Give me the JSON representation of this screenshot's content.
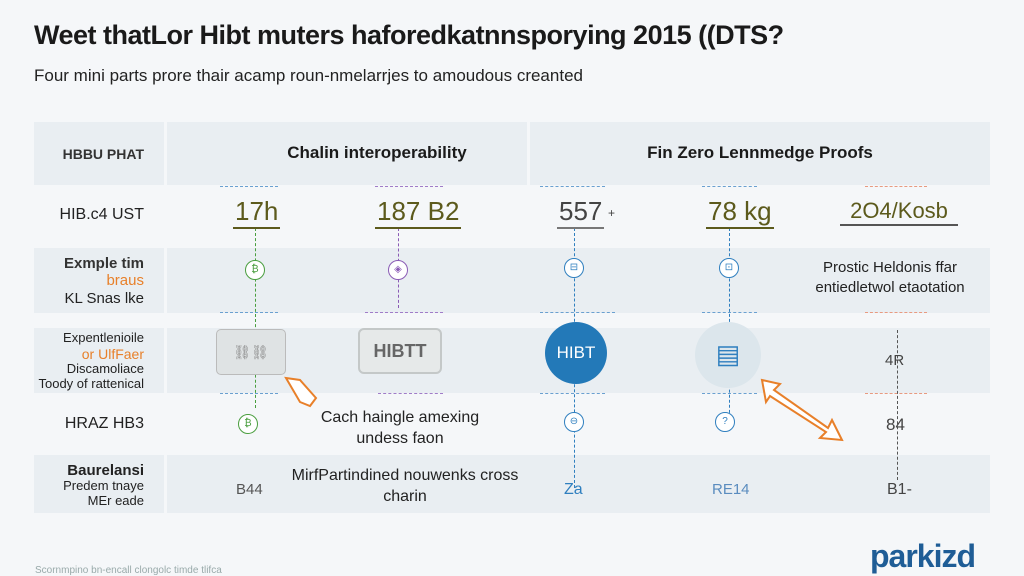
{
  "title": "Weet thatLor Hibt muters haforedkatnnsporying 2015 ((DTS?",
  "subtitle": "Four mini parts prore thair acamp roun-nmelarrjes to amoudous creanted",
  "headers": {
    "left": "HBBU PHAT",
    "col_a": "Chalin interoperability",
    "col_b": "Fin Zero Lennmedge Proofs"
  },
  "row_labels": {
    "r1": "HIB.c4 UST",
    "r2": [
      "Exmple tim",
      "braus",
      "KL Snas lke"
    ],
    "r3": [
      "Expentlenioile",
      "or UlfFaer",
      "Discamoliace",
      "Toody of rattenical"
    ],
    "r4": "HRAZ HB3",
    "r5": [
      "Baurelansi",
      "Predem tnaye",
      "MEr eade"
    ]
  },
  "values": [
    "17h",
    "187 B2",
    "557",
    "78 kg",
    "2O4/Kosb"
  ],
  "values_suffix": {
    "c3": "+"
  },
  "cells": {
    "hibtt_box": "HIBTT",
    "hibt_circle": "HIBT",
    "note_c5_r2": "Prostic Heldonis ffar entiedletwol etaotation",
    "c5_r3": "4R",
    "c5_r4": "84",
    "caption_r4": "Cach haingle amexing undess faon",
    "caption_r5": "MirfPartindined nouwenks cross charin",
    "c1_r5": "B44",
    "c3_r5": "Za",
    "c4_r5": "RE14",
    "c5_r5": "B1-"
  },
  "brand": "parkizd",
  "footer": "Scornmpino bn-encall clongolc timde tlifca",
  "colors": {
    "green": "#4a9e3f",
    "purple": "#8a5bb5",
    "blue": "#2f7fbf",
    "orange": "#e8802a",
    "olive": "#5c5a1c",
    "brand_blue": "#1f5d96"
  }
}
